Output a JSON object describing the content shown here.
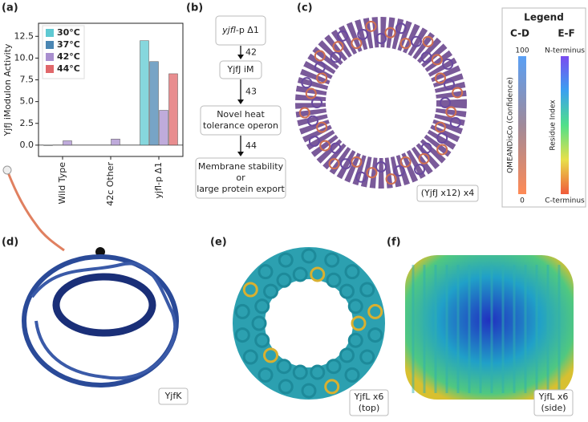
{
  "panels": {
    "a": "(a)",
    "b": "(b)",
    "c": "(c)",
    "d": "(d)",
    "e": "(e)",
    "f": "(f)"
  },
  "chart_data": {
    "type": "bar",
    "y_label": "YjfJ iModulon Activity",
    "categories": [
      "Wild Type",
      "42c Other",
      "yjfl-p Δ1"
    ],
    "series": [
      {
        "name": "30°C",
        "color": "#5ec9d2",
        "values": [
          0.0,
          null,
          12.0
        ]
      },
      {
        "name": "37°C",
        "color": "#4a86b3",
        "values": [
          null,
          null,
          9.6
        ]
      },
      {
        "name": "42°C",
        "color": "#a98fcf",
        "values": [
          0.5,
          0.7,
          4.0
        ]
      },
      {
        "name": "44°C",
        "color": "#e0676a",
        "values": [
          null,
          null,
          8.2
        ]
      }
    ],
    "ylim": [
      -1.3,
      14
    ],
    "yticks": [
      {
        "value": 0,
        "label": "0.0"
      },
      2.5,
      {
        "value": 5,
        "label": "5.0"
      },
      7.5,
      {
        "value": 10,
        "label": "10.0"
      },
      12.5
    ]
  },
  "flow": {
    "nodes": [
      {
        "lines": [
          "yjfl",
          "-p Δ1"
        ]
      },
      {
        "lines": [
          "YjfJ iM"
        ]
      },
      {
        "lines": [
          "Novel heat",
          "tolerance operon"
        ]
      },
      {
        "lines": [
          "Membrane stability",
          "or",
          "large protein export"
        ]
      }
    ],
    "edges": [
      "42",
      "43",
      "44"
    ]
  },
  "legend": {
    "title": "Legend",
    "col1": "C-D",
    "col2": "E-F",
    "top1": "100",
    "bottom1": "0",
    "label1": "QMEANDisCo (Confidence)",
    "top2": "N-terminus",
    "bottom2": "C-terminus",
    "label2": "Residue Index"
  },
  "captions": {
    "c": "(YjfJ x12) x4",
    "d": "YjfK",
    "e": [
      "YjfL x6",
      "(top)"
    ],
    "f": [
      "YjfL x6",
      "(side)"
    ]
  }
}
